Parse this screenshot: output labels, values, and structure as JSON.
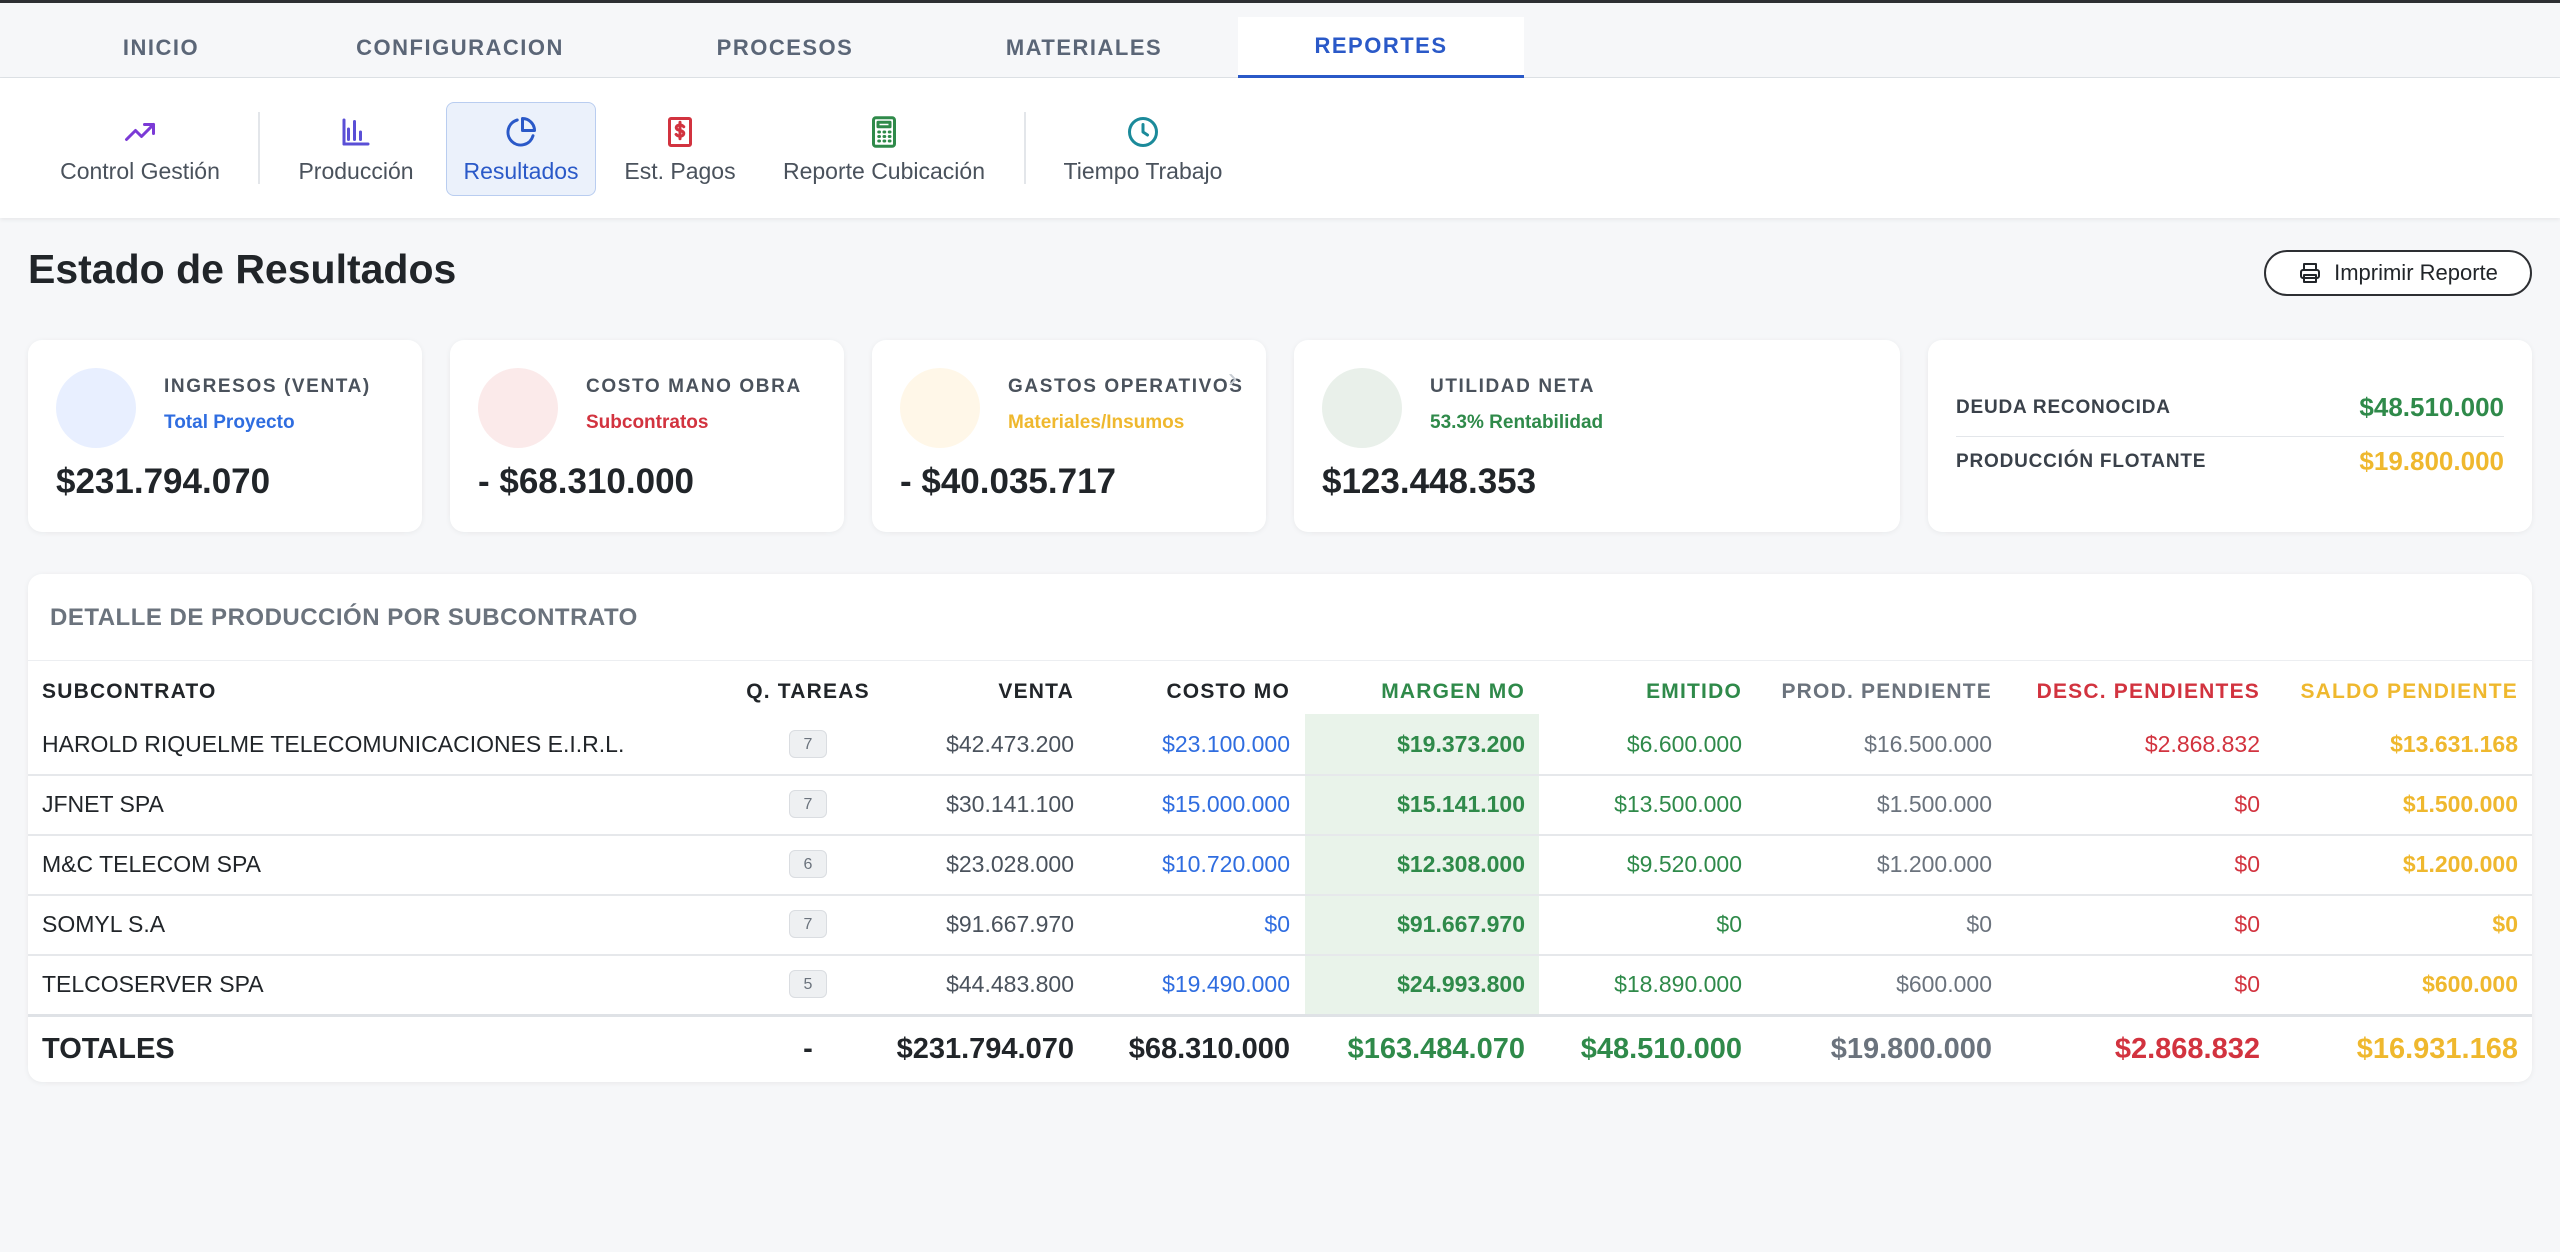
{
  "tabs": [
    {
      "label": "INICIO",
      "active": false
    },
    {
      "label": "CONFIGURACION",
      "active": false
    },
    {
      "label": "PROCESOS",
      "active": false
    },
    {
      "label": "MATERIALES",
      "active": false
    },
    {
      "label": "REPORTES",
      "active": true
    }
  ],
  "subnav": [
    {
      "label": "Control Gestión",
      "icon": "trending-up-icon",
      "color": "#7b3ad6"
    },
    {
      "label": "Producción",
      "icon": "bar-chart-icon",
      "color": "#5a4fd6"
    },
    {
      "label": "Resultados",
      "icon": "pie-chart-icon",
      "color": "#2a59c8",
      "active": true
    },
    {
      "label": "Est. Pagos",
      "icon": "dollar-doc-icon",
      "color": "#d2333f"
    },
    {
      "label": "Reporte Cubicación",
      "icon": "calculator-icon",
      "color": "#2f8a4a"
    },
    {
      "label": "Tiempo Trabajo",
      "icon": "clock-icon",
      "color": "#1b8a9a"
    }
  ],
  "page": {
    "title": "Estado de Resultados",
    "print_label": "Imprimir Reporte"
  },
  "cards": [
    {
      "title": "INGRESOS (VENTA)",
      "subtitle": "Total Proyecto",
      "value": "$231.794.070",
      "subtitle_color": "#2f6de0",
      "circle_color": "#e8efff"
    },
    {
      "title": "COSTO MANO OBRA",
      "subtitle": "Subcontratos",
      "value": "- $68.310.000",
      "subtitle_color": "#d2333f",
      "circle_color": "#fbeaea"
    },
    {
      "title": "GASTOS OPERATIVOS",
      "subtitle": "Materiales/Insumos",
      "value": "- $40.035.717",
      "subtitle_color": "#efb82e",
      "circle_color": "#fff7e8"
    },
    {
      "title": "UTILIDAD NETA",
      "subtitle": "53.3% Rentabilidad",
      "value": "$123.448.353",
      "subtitle_color": "#2f8a4a",
      "circle_color": "#e9f0ea"
    }
  ],
  "debt": {
    "deuda_label": "DEUDA RECONOCIDA",
    "deuda_value": "$48.510.000",
    "flotante_label": "PRODUCCIÓN FLOTANTE",
    "flotante_value": "$19.800.000"
  },
  "table": {
    "title": "DETALLE DE PRODUCCIÓN POR SUBCONTRATO",
    "headers": [
      "SUBCONTRATO",
      "Q. TAREAS",
      "VENTA",
      "COSTO MO",
      "MARGEN MO",
      "EMITIDO",
      "PROD. PENDIENTE",
      "DESC. PENDIENTES",
      "SALDO PENDIENTE"
    ],
    "rows": [
      [
        "HAROLD RIQUELME TELECOMUNICACIONES E.I.R.L.",
        "7",
        "$42.473.200",
        "$23.100.000",
        "$19.373.200",
        "$6.600.000",
        "$16.500.000",
        "$2.868.832",
        "$13.631.168"
      ],
      [
        "JFNET SPA",
        "7",
        "$30.141.100",
        "$15.000.000",
        "$15.141.100",
        "$13.500.000",
        "$1.500.000",
        "$0",
        "$1.500.000"
      ],
      [
        "M&C TELECOM SPA",
        "6",
        "$23.028.000",
        "$10.720.000",
        "$12.308.000",
        "$9.520.000",
        "$1.200.000",
        "$0",
        "$1.200.000"
      ],
      [
        "SOMYL S.A",
        "7",
        "$91.667.970",
        "$0",
        "$91.667.970",
        "$0",
        "$0",
        "$0",
        "$0"
      ],
      [
        "TELCOSERVER SPA",
        "5",
        "$44.483.800",
        "$19.490.000",
        "$24.993.800",
        "$18.890.000",
        "$600.000",
        "$0",
        "$600.000"
      ]
    ],
    "totals": [
      "TOTALES",
      "-",
      "$231.794.070",
      "$68.310.000",
      "$163.484.070",
      "$48.510.000",
      "$19.800.000",
      "$2.868.832",
      "$16.931.168"
    ]
  }
}
